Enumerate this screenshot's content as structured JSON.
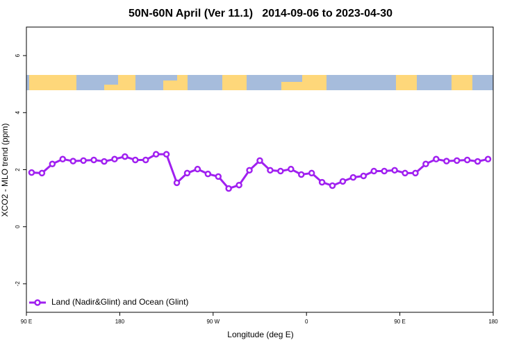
{
  "chart_data": {
    "type": "line",
    "title": "50N-60N April (Ver 11.1)   2014-09-06 to 2023-04-30",
    "x_label": "Longitude (deg E)",
    "y_label": "XCO2 - MLO trend (ppm)",
    "x": [
      95,
      105,
      115,
      125,
      135,
      145,
      155,
      165,
      175,
      185,
      195,
      205,
      215,
      225,
      235,
      245,
      255,
      265,
      275,
      285,
      295,
      305,
      315,
      325,
      335,
      345,
      355,
      365,
      375,
      385,
      395,
      405,
      415,
      425,
      435,
      445,
      455,
      465,
      475,
      485,
      495,
      505,
      515,
      525,
      535
    ],
    "series": [
      {
        "name": "Land (Nadir&Glint) and Ocean (Glint)",
        "color": "#a020f0",
        "values": [
          1.9,
          1.88,
          2.2,
          2.37,
          2.3,
          2.32,
          2.34,
          2.29,
          2.37,
          2.46,
          2.34,
          2.34,
          2.54,
          2.54,
          1.54,
          1.88,
          2.02,
          1.85,
          1.76,
          1.34,
          1.46,
          1.98,
          2.32,
          1.98,
          1.95,
          2.02,
          1.83,
          1.88,
          1.56,
          1.44,
          1.59,
          1.73,
          1.78,
          1.95,
          1.95,
          1.98,
          1.88,
          1.88,
          2.2,
          2.37,
          2.3,
          2.32,
          2.34,
          2.29,
          2.37
        ]
      }
    ],
    "xlim": [
      90,
      540
    ],
    "xticks": [
      {
        "value": 90,
        "label": "90 E"
      },
      180,
      {
        "value": 270,
        "label": "90 W"
      },
      {
        "value": 360,
        "label": "0"
      },
      {
        "value": 450,
        "label": "90 E"
      },
      {
        "value": 540,
        "label": "180"
      }
    ],
    "ylim": [
      -3,
      7
    ],
    "yticks": [
      -2,
      0,
      2,
      4,
      6
    ],
    "legend": "lower left"
  }
}
